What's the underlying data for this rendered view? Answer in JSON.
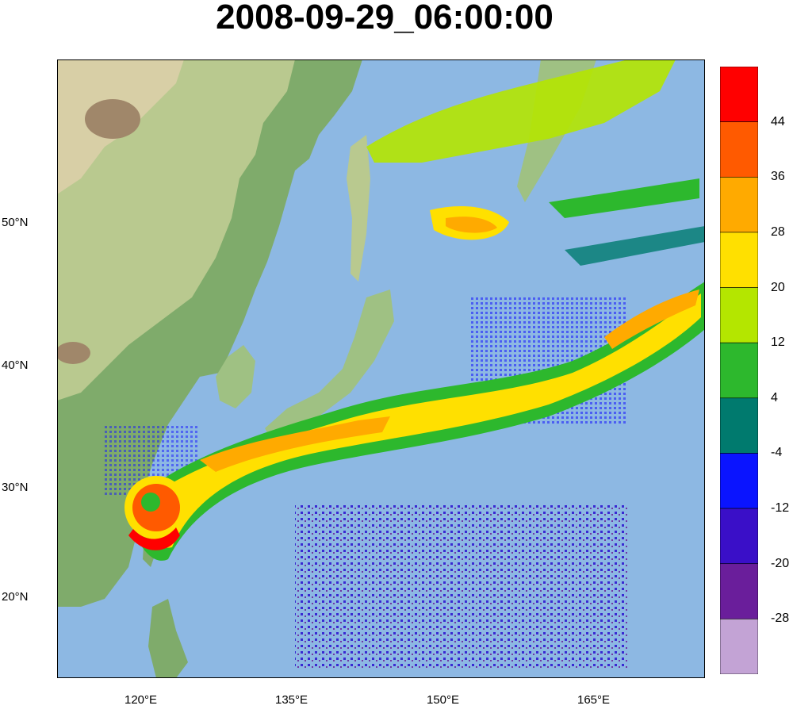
{
  "title": "2008-09-29_06:00:00",
  "map": {
    "lon_ticks": [
      "120°E",
      "135°E",
      "150°E",
      "165°E"
    ],
    "lat_ticks": [
      "50°N",
      "40°N",
      "30°N",
      "20°N"
    ],
    "colors": {
      "ocean": "#8db8e3",
      "land_low": "#7fab6b",
      "land_mid": "#b9c98f",
      "land_high": "#d8cfa6",
      "mountain": "#a0876a"
    }
  },
  "colorbar": {
    "labels": [
      "44",
      "36",
      "28",
      "20",
      "12",
      "4",
      "-4",
      "-12",
      "-20",
      "-28"
    ],
    "colors": [
      "#ff0000",
      "#ff5a00",
      "#ffaa00",
      "#ffe000",
      "#b4e600",
      "#2db82d",
      "#007a6e",
      "#0a14ff",
      "#3a0fc8",
      "#6a1e9b",
      "#c3a3d5"
    ]
  }
}
